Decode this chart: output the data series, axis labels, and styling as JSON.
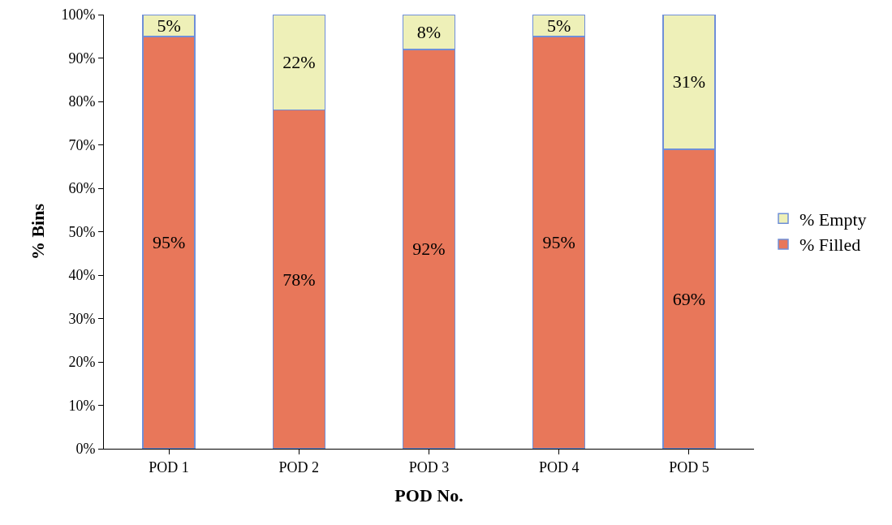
{
  "chart_data": {
    "type": "bar",
    "stacked": true,
    "xlabel": "POD No.",
    "ylabel": "% Bins",
    "categories": [
      "POD 1",
      "POD 2",
      "POD 3",
      "POD 4",
      "POD 5"
    ],
    "series": [
      {
        "name": "% Filled",
        "color": "#e8775a",
        "values": [
          95,
          78,
          92,
          95,
          69
        ],
        "value_labels": [
          "95%",
          "78%",
          "92%",
          "95%",
          "69%"
        ]
      },
      {
        "name": "% Empty",
        "color": "#eef0b8",
        "values": [
          5,
          22,
          8,
          5,
          31
        ],
        "value_labels": [
          "5%",
          "22%",
          "8%",
          "5%",
          "31%"
        ]
      }
    ],
    "ylim": [
      0,
      100
    ],
    "yticks": [
      {
        "value": 0,
        "label": "0%"
      },
      {
        "value": 10,
        "label": "10%"
      },
      {
        "value": 20,
        "label": "20%"
      },
      {
        "value": 30,
        "label": "30%"
      },
      {
        "value": 40,
        "label": "40%"
      },
      {
        "value": 50,
        "label": "50%"
      },
      {
        "value": 60,
        "label": "60%"
      },
      {
        "value": 70,
        "label": "70%"
      },
      {
        "value": 80,
        "label": "80%"
      },
      {
        "value": 90,
        "label": "90%"
      },
      {
        "value": 100,
        "label": "100%"
      }
    ],
    "grid": false,
    "legend": "right"
  }
}
